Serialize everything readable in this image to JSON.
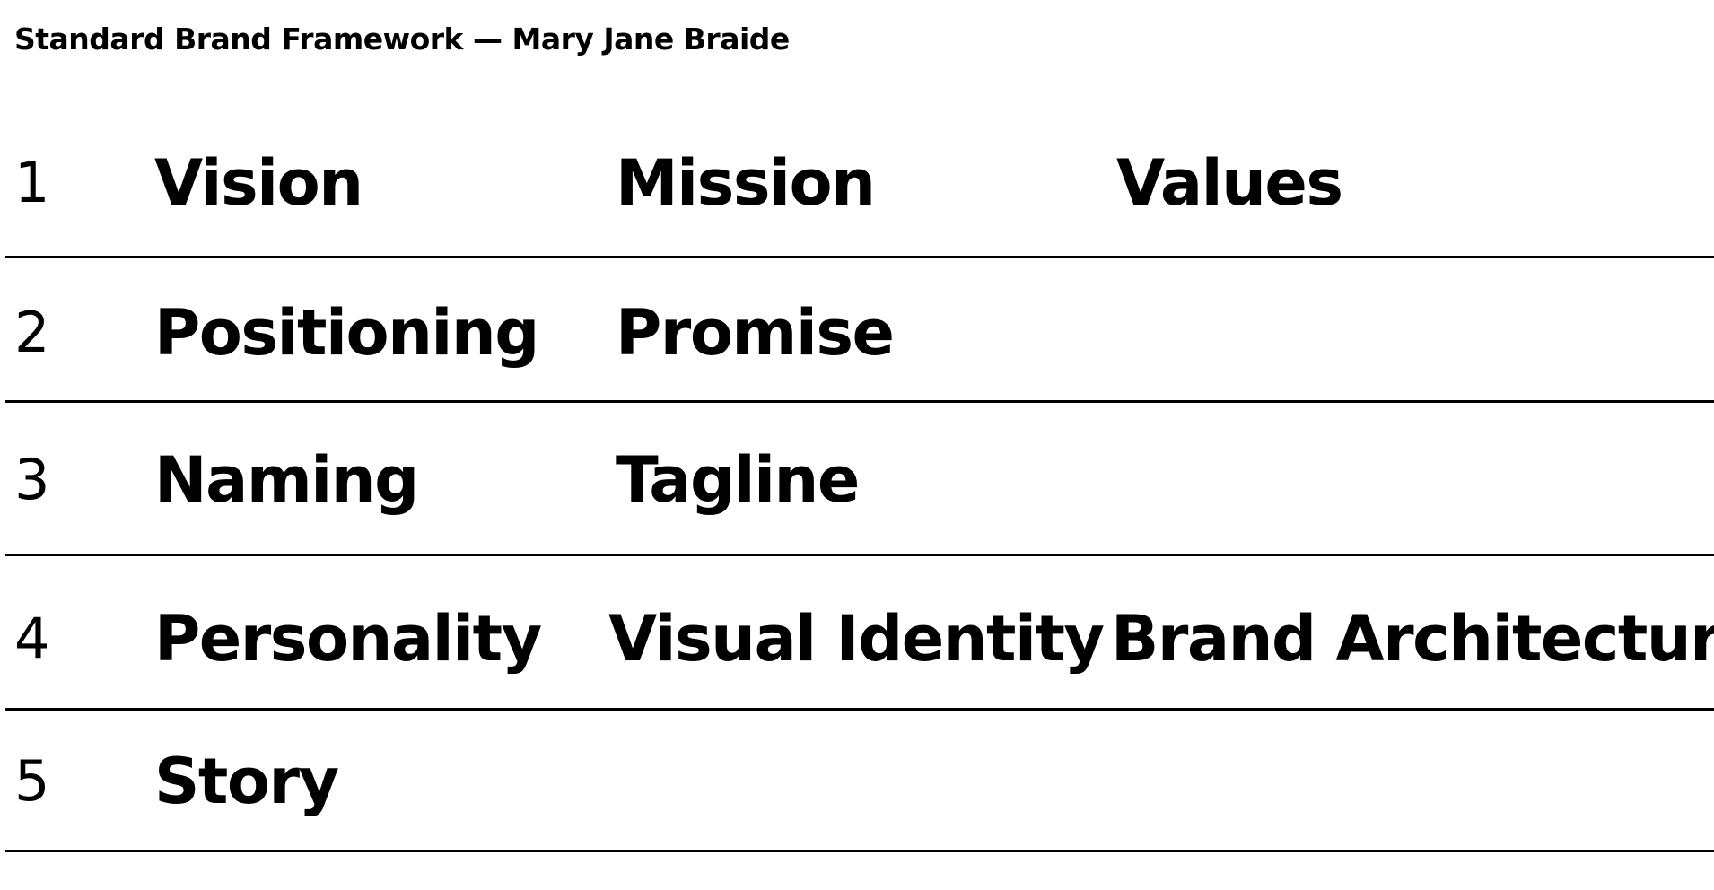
{
  "header": {
    "title": "Standard Brand Framework — Mary Jane Braide"
  },
  "framework": {
    "rows": [
      {
        "number": "1",
        "cells": [
          "Vision",
          "Mission",
          "Values"
        ]
      },
      {
        "number": "2",
        "cells": [
          "Positioning",
          "Promise",
          ""
        ]
      },
      {
        "number": "3",
        "cells": [
          "Naming",
          "Tagline",
          ""
        ]
      },
      {
        "number": "4",
        "cells": [
          "Personality",
          "Visual Identity",
          "Brand Architecture"
        ]
      },
      {
        "number": "5",
        "cells": [
          "Story",
          "",
          ""
        ]
      }
    ]
  },
  "colors": {
    "text": "#000000",
    "rule": "#000000",
    "background": "#ffffff"
  }
}
